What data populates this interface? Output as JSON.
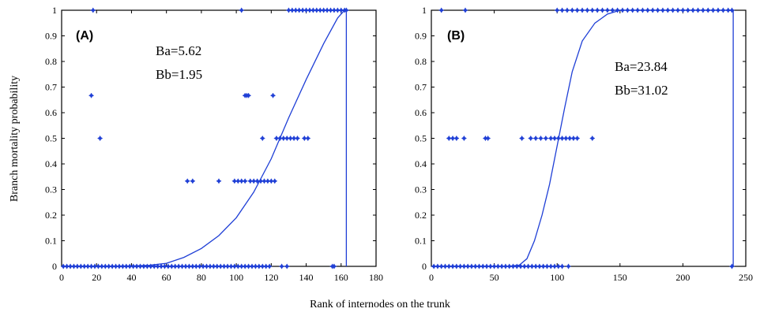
{
  "figure": {
    "ylabel": "Branch mortality probability",
    "xlabel": "Rank of internodes on the trunk"
  },
  "colors": {
    "series": "#1f3fd6",
    "axes": "#000000"
  },
  "chart_data": [
    {
      "type": "scatter",
      "panel_label": "(A)",
      "xlim": [
        0,
        180
      ],
      "ylim": [
        0,
        1
      ],
      "xticks": [
        "0",
        "20",
        "40",
        "60",
        "80",
        "100",
        "120",
        "140",
        "160",
        "180"
      ],
      "yticks": [
        "0",
        "0.1",
        "0.2",
        "0.3",
        "0.4",
        "0.5",
        "0.6",
        "0.7",
        "0.8",
        "0.9",
        "1"
      ],
      "annotations": [
        "Ba=5.62",
        "Bb=1.95"
      ],
      "points": [
        [
          18,
          1
        ],
        [
          103,
          1
        ],
        [
          130,
          1
        ],
        [
          132,
          1
        ],
        [
          134,
          1
        ],
        [
          136,
          1
        ],
        [
          138,
          1
        ],
        [
          140,
          1
        ],
        [
          142,
          1
        ],
        [
          144,
          1
        ],
        [
          146,
          1
        ],
        [
          148,
          1
        ],
        [
          150,
          1
        ],
        [
          152,
          1
        ],
        [
          154,
          1
        ],
        [
          156,
          1
        ],
        [
          158,
          1
        ],
        [
          160,
          1
        ],
        [
          162,
          1
        ],
        [
          163,
          1
        ],
        [
          17,
          0.667
        ],
        [
          105,
          0.667
        ],
        [
          106,
          0.667
        ],
        [
          107,
          0.667
        ],
        [
          121,
          0.667
        ],
        [
          22,
          0.5
        ],
        [
          115,
          0.5
        ],
        [
          123,
          0.5
        ],
        [
          125,
          0.5
        ],
        [
          127,
          0.5
        ],
        [
          129,
          0.5
        ],
        [
          131,
          0.5
        ],
        [
          133,
          0.5
        ],
        [
          135,
          0.5
        ],
        [
          139,
          0.5
        ],
        [
          141,
          0.5
        ],
        [
          72,
          0.333
        ],
        [
          75,
          0.333
        ],
        [
          90,
          0.333
        ],
        [
          99,
          0.333
        ],
        [
          101,
          0.333
        ],
        [
          103,
          0.333
        ],
        [
          105,
          0.333
        ],
        [
          108,
          0.333
        ],
        [
          110,
          0.333
        ],
        [
          112,
          0.333
        ],
        [
          114,
          0.333
        ],
        [
          116,
          0.333
        ],
        [
          118,
          0.333
        ],
        [
          120,
          0.333
        ],
        [
          122,
          0.333
        ],
        [
          1,
          0
        ],
        [
          3,
          0
        ],
        [
          5,
          0
        ],
        [
          7,
          0
        ],
        [
          9,
          0
        ],
        [
          11,
          0
        ],
        [
          13,
          0
        ],
        [
          15,
          0
        ],
        [
          17,
          0
        ],
        [
          19,
          0
        ],
        [
          21,
          0
        ],
        [
          23,
          0
        ],
        [
          25,
          0
        ],
        [
          27,
          0
        ],
        [
          29,
          0
        ],
        [
          31,
          0
        ],
        [
          33,
          0
        ],
        [
          35,
          0
        ],
        [
          37,
          0
        ],
        [
          39,
          0
        ],
        [
          41,
          0
        ],
        [
          43,
          0
        ],
        [
          45,
          0
        ],
        [
          47,
          0
        ],
        [
          49,
          0
        ],
        [
          51,
          0
        ],
        [
          53,
          0
        ],
        [
          55,
          0
        ],
        [
          57,
          0
        ],
        [
          59,
          0
        ],
        [
          61,
          0
        ],
        [
          63,
          0
        ],
        [
          65,
          0
        ],
        [
          67,
          0
        ],
        [
          69,
          0
        ],
        [
          71,
          0
        ],
        [
          73,
          0
        ],
        [
          75,
          0
        ],
        [
          77,
          0
        ],
        [
          79,
          0
        ],
        [
          81,
          0
        ],
        [
          83,
          0
        ],
        [
          85,
          0
        ],
        [
          87,
          0
        ],
        [
          89,
          0
        ],
        [
          91,
          0
        ],
        [
          93,
          0
        ],
        [
          95,
          0
        ],
        [
          97,
          0
        ],
        [
          99,
          0
        ],
        [
          101,
          0
        ],
        [
          103,
          0
        ],
        [
          105,
          0
        ],
        [
          107,
          0
        ],
        [
          109,
          0
        ],
        [
          111,
          0
        ],
        [
          113,
          0
        ],
        [
          115,
          0
        ],
        [
          117,
          0
        ],
        [
          119,
          0
        ],
        [
          126,
          0
        ],
        [
          129,
          0
        ],
        [
          155,
          0
        ],
        [
          156,
          0
        ]
      ],
      "curve": [
        [
          0,
          0
        ],
        [
          20,
          0
        ],
        [
          40,
          0.002
        ],
        [
          50,
          0.004
        ],
        [
          60,
          0.012
        ],
        [
          70,
          0.035
        ],
        [
          80,
          0.07
        ],
        [
          90,
          0.12
        ],
        [
          100,
          0.19
        ],
        [
          110,
          0.29
        ],
        [
          120,
          0.42
        ],
        [
          130,
          0.58
        ],
        [
          140,
          0.73
        ],
        [
          150,
          0.87
        ],
        [
          158,
          0.97
        ],
        [
          162,
          1
        ],
        [
          163,
          1
        ],
        [
          163,
          0
        ]
      ]
    },
    {
      "type": "scatter",
      "panel_label": "(B)",
      "xlim": [
        0,
        250
      ],
      "ylim": [
        0,
        1
      ],
      "xticks": [
        "0",
        "50",
        "100",
        "150",
        "200",
        "250"
      ],
      "yticks": [
        "0",
        "0.1",
        "0.2",
        "0.3",
        "0.4",
        "0.5",
        "0.6",
        "0.7",
        "0.8",
        "0.9",
        "1"
      ],
      "annotations": [
        "Ba=23.84",
        "Bb=31.02"
      ],
      "points": [
        [
          8,
          1
        ],
        [
          27,
          1
        ],
        [
          100,
          1
        ],
        [
          104,
          1
        ],
        [
          108,
          1
        ],
        [
          112,
          1
        ],
        [
          116,
          1
        ],
        [
          120,
          1
        ],
        [
          124,
          1
        ],
        [
          128,
          1
        ],
        [
          132,
          1
        ],
        [
          136,
          1
        ],
        [
          140,
          1
        ],
        [
          144,
          1
        ],
        [
          148,
          1
        ],
        [
          152,
          1
        ],
        [
          156,
          1
        ],
        [
          160,
          1
        ],
        [
          164,
          1
        ],
        [
          168,
          1
        ],
        [
          172,
          1
        ],
        [
          176,
          1
        ],
        [
          180,
          1
        ],
        [
          184,
          1
        ],
        [
          188,
          1
        ],
        [
          192,
          1
        ],
        [
          196,
          1
        ],
        [
          200,
          1
        ],
        [
          204,
          1
        ],
        [
          208,
          1
        ],
        [
          212,
          1
        ],
        [
          216,
          1
        ],
        [
          220,
          1
        ],
        [
          224,
          1
        ],
        [
          228,
          1
        ],
        [
          232,
          1
        ],
        [
          236,
          1
        ],
        [
          239,
          1
        ],
        [
          14,
          0.5
        ],
        [
          17,
          0.5
        ],
        [
          20,
          0.5
        ],
        [
          26,
          0.5
        ],
        [
          43,
          0.5
        ],
        [
          45,
          0.5
        ],
        [
          72,
          0.5
        ],
        [
          79,
          0.5
        ],
        [
          83,
          0.5
        ],
        [
          87,
          0.5
        ],
        [
          91,
          0.5
        ],
        [
          95,
          0.5
        ],
        [
          98,
          0.5
        ],
        [
          101,
          0.5
        ],
        [
          104,
          0.5
        ],
        [
          107,
          0.5
        ],
        [
          110,
          0.5
        ],
        [
          113,
          0.5
        ],
        [
          116,
          0.5
        ],
        [
          128,
          0.5
        ],
        [
          2,
          0
        ],
        [
          5,
          0
        ],
        [
          8,
          0
        ],
        [
          11,
          0
        ],
        [
          14,
          0
        ],
        [
          17,
          0
        ],
        [
          20,
          0
        ],
        [
          23,
          0
        ],
        [
          26,
          0
        ],
        [
          29,
          0
        ],
        [
          32,
          0
        ],
        [
          35,
          0
        ],
        [
          38,
          0
        ],
        [
          41,
          0
        ],
        [
          44,
          0
        ],
        [
          47,
          0
        ],
        [
          50,
          0
        ],
        [
          53,
          0
        ],
        [
          56,
          0
        ],
        [
          59,
          0
        ],
        [
          62,
          0
        ],
        [
          65,
          0
        ],
        [
          68,
          0
        ],
        [
          71,
          0
        ],
        [
          74,
          0
        ],
        [
          77,
          0
        ],
        [
          80,
          0
        ],
        [
          83,
          0
        ],
        [
          86,
          0
        ],
        [
          89,
          0
        ],
        [
          92,
          0
        ],
        [
          95,
          0
        ],
        [
          98,
          0
        ],
        [
          101,
          0
        ],
        [
          104,
          0
        ],
        [
          109,
          0
        ],
        [
          239,
          0
        ]
      ],
      "curve": [
        [
          0,
          0
        ],
        [
          60,
          0
        ],
        [
          70,
          0.005
        ],
        [
          76,
          0.03
        ],
        [
          82,
          0.1
        ],
        [
          88,
          0.2
        ],
        [
          94,
          0.32
        ],
        [
          100,
          0.47
        ],
        [
          106,
          0.62
        ],
        [
          112,
          0.76
        ],
        [
          120,
          0.88
        ],
        [
          130,
          0.95
        ],
        [
          140,
          0.985
        ],
        [
          150,
          1
        ],
        [
          240,
          1
        ],
        [
          240,
          0
        ]
      ]
    }
  ]
}
